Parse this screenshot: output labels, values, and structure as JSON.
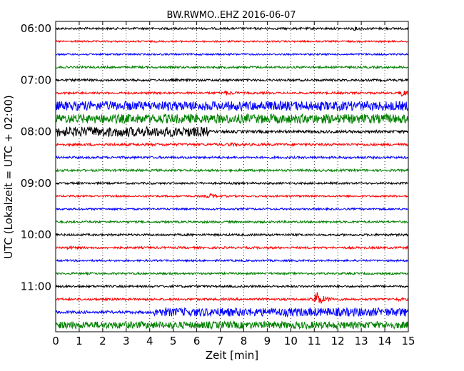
{
  "chart_data": {
    "type": "line",
    "title": "BW.RWMO..EHZ 2016-06-07",
    "xlabel": "Zeit  [min]",
    "ylabel": "UTC (Lokalzeit = UTC + 02:00)",
    "xlim": [
      0,
      15
    ],
    "x_ticks": [
      "0",
      "1",
      "2",
      "3",
      "4",
      "5",
      "6",
      "7",
      "8",
      "9",
      "10",
      "11",
      "12",
      "13",
      "14",
      "15"
    ],
    "y_ticks": [
      "06:00",
      "07:00",
      "08:00",
      "09:00",
      "10:00",
      "11:00"
    ],
    "grid": "vertical-dotted",
    "series_colors": [
      "#000000",
      "#ff0000",
      "#0000ff",
      "#008000"
    ],
    "traces": [
      {
        "start": "06:00",
        "amp": 1.5,
        "events": [
          {
            "t": 12.7,
            "amp": 3
          }
        ]
      },
      {
        "start": "06:15",
        "amp": 1.2,
        "events": []
      },
      {
        "start": "06:30",
        "amp": 1.2,
        "events": []
      },
      {
        "start": "06:45",
        "amp": 1.5,
        "events": []
      },
      {
        "start": "07:00",
        "amp": 1.6,
        "events": []
      },
      {
        "start": "07:15",
        "amp": 1.5,
        "events": [
          {
            "t": 7.2,
            "amp": 4
          },
          {
            "t": 14.7,
            "amp": 6
          }
        ]
      },
      {
        "start": "07:30",
        "amp": 6.5,
        "events": []
      },
      {
        "start": "07:45",
        "amp": 6.5,
        "events": []
      },
      {
        "start": "08:00",
        "amp": 2.0,
        "events": [
          {
            "t": 3.0,
            "amp": 7,
            "from": 0,
            "to": 6.5
          }
        ]
      },
      {
        "start": "08:15",
        "amp": 1.8,
        "events": [
          {
            "t": 7.4,
            "amp": 3
          }
        ]
      },
      {
        "start": "08:30",
        "amp": 1.6,
        "events": []
      },
      {
        "start": "08:45",
        "amp": 1.6,
        "events": []
      },
      {
        "start": "09:00",
        "amp": 1.4,
        "events": []
      },
      {
        "start": "09:15",
        "amp": 1.3,
        "events": [
          {
            "t": 6.5,
            "amp": 5
          }
        ]
      },
      {
        "start": "09:30",
        "amp": 1.3,
        "events": []
      },
      {
        "start": "09:45",
        "amp": 1.5,
        "events": []
      },
      {
        "start": "10:00",
        "amp": 1.5,
        "events": []
      },
      {
        "start": "10:15",
        "amp": 1.5,
        "events": [
          {
            "t": 0.5,
            "amp": 3
          }
        ]
      },
      {
        "start": "10:30",
        "amp": 1.3,
        "events": []
      },
      {
        "start": "10:45",
        "amp": 1.4,
        "events": []
      },
      {
        "start": "11:00",
        "amp": 1.5,
        "events": []
      },
      {
        "start": "11:15",
        "amp": 1.6,
        "events": [
          {
            "t": 11.05,
            "amp": 14
          },
          {
            "t": 14.5,
            "amp": 3
          }
        ]
      },
      {
        "start": "11:30",
        "amp": 2.0,
        "events": [
          {
            "t": 5.0,
            "amp": 6,
            "from": 4.2,
            "to": 15
          }
        ]
      },
      {
        "start": "11:45",
        "amp": 5.0,
        "events": []
      }
    ]
  }
}
